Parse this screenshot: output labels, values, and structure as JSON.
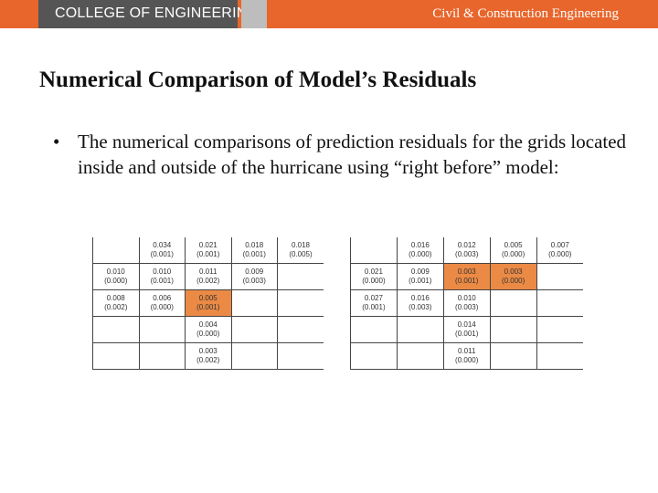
{
  "header": {
    "college": "COLLEGE OF ENGINEERING",
    "department": "Civil & Construction Engineering"
  },
  "slide": {
    "title": "Numerical Comparison of Model’s Residuals",
    "bullet_symbol": "•",
    "bullet": "The numerical comparisons of prediction residuals for the grids located inside and outside of the hurricane using “right before” model:"
  },
  "grids": {
    "left": {
      "rows": [
        [
          {
            "v": "",
            "s": ""
          },
          {
            "v": "0.034",
            "s": "(0.001)"
          },
          {
            "v": "0.021",
            "s": "(0.001)"
          },
          {
            "v": "0.018",
            "s": "(0.001)"
          },
          {
            "v": "0.018",
            "s": "(0.005)"
          }
        ],
        [
          {
            "v": "0.010",
            "s": "(0.000)"
          },
          {
            "v": "0.010",
            "s": "(0.001)"
          },
          {
            "v": "0.011",
            "s": "(0.002)"
          },
          {
            "v": "0.009",
            "s": "(0.003)"
          },
          {
            "v": "",
            "s": ""
          }
        ],
        [
          {
            "v": "0.008",
            "s": "(0.002)"
          },
          {
            "v": "0.006",
            "s": "(0.000)"
          },
          {
            "v": "0.005",
            "s": "(0.001)",
            "highlight": true
          },
          {
            "v": "",
            "s": ""
          },
          {
            "v": "",
            "s": ""
          }
        ],
        [
          {
            "v": "",
            "s": ""
          },
          {
            "v": "",
            "s": ""
          },
          {
            "v": "0.004",
            "s": "(0.000)"
          },
          {
            "v": "",
            "s": ""
          },
          {
            "v": "",
            "s": ""
          }
        ],
        [
          {
            "v": "",
            "s": ""
          },
          {
            "v": "",
            "s": ""
          },
          {
            "v": "0.003",
            "s": "(0.002)"
          },
          {
            "v": "",
            "s": ""
          },
          {
            "v": "",
            "s": ""
          }
        ]
      ]
    },
    "right": {
      "rows": [
        [
          {
            "v": "",
            "s": ""
          },
          {
            "v": "0.016",
            "s": "(0.000)"
          },
          {
            "v": "0.012",
            "s": "(0.003)"
          },
          {
            "v": "0.005",
            "s": "(0.000)"
          },
          {
            "v": "0.007",
            "s": "(0.000)"
          }
        ],
        [
          {
            "v": "0.021",
            "s": "(0.000)"
          },
          {
            "v": "0.009",
            "s": "(0.001)"
          },
          {
            "v": "0.003",
            "s": "(0.001)",
            "highlight": true
          },
          {
            "v": "0.003",
            "s": "(0.000)",
            "highlight": true
          },
          {
            "v": "",
            "s": ""
          }
        ],
        [
          {
            "v": "0.027",
            "s": "(0.001)"
          },
          {
            "v": "0.016",
            "s": "(0.003)"
          },
          {
            "v": "0.010",
            "s": "(0.003)"
          },
          {
            "v": "",
            "s": ""
          },
          {
            "v": "",
            "s": ""
          }
        ],
        [
          {
            "v": "",
            "s": ""
          },
          {
            "v": "",
            "s": ""
          },
          {
            "v": "0.014",
            "s": "(0.001)"
          },
          {
            "v": "",
            "s": ""
          },
          {
            "v": "",
            "s": ""
          }
        ],
        [
          {
            "v": "",
            "s": ""
          },
          {
            "v": "",
            "s": ""
          },
          {
            "v": "0.011",
            "s": "(0.000)"
          },
          {
            "v": "",
            "s": ""
          },
          {
            "v": "",
            "s": ""
          }
        ]
      ]
    }
  },
  "colors": {
    "header_orange": "#e8662b",
    "header_gray": "#555555",
    "highlight": "#eb8a45"
  }
}
